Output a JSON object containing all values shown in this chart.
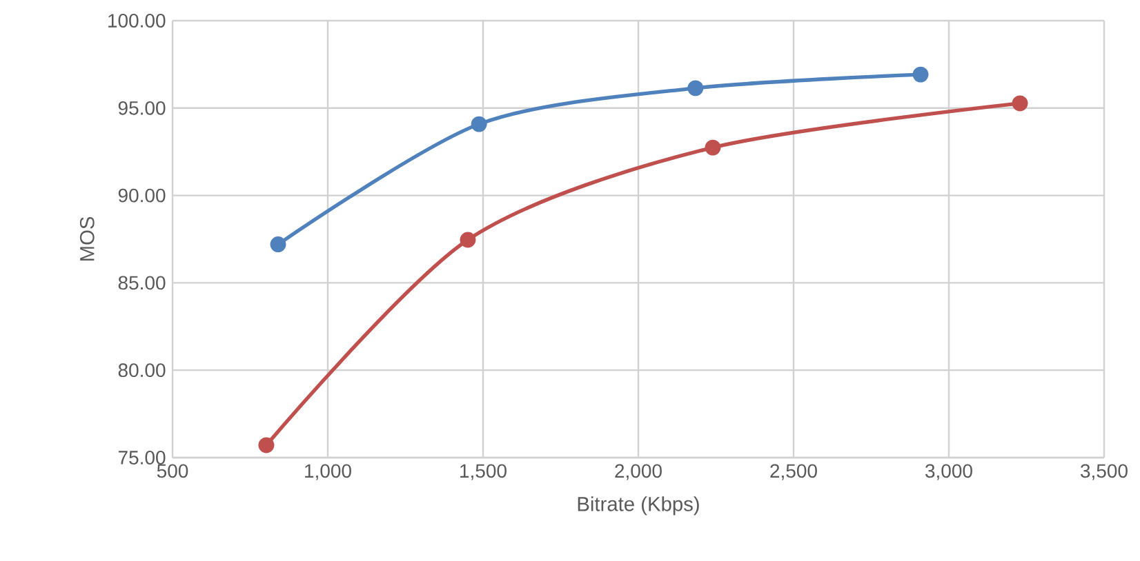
{
  "chart_data": {
    "type": "line",
    "xlabel": "Bitrate (Kbps)",
    "ylabel": "MOS",
    "series": [
      {
        "color": "#4f81bd",
        "x": [
          840,
          1487,
          2184,
          2909
        ],
        "values": [
          87.2,
          94.08,
          96.14,
          96.92
        ]
      },
      {
        "color": "#c0504d",
        "x": [
          802,
          1451,
          2240,
          3229
        ],
        "values": [
          75.71,
          87.46,
          92.74,
          95.27
        ]
      }
    ],
    "xlim": [
      500,
      3500
    ],
    "ylim": [
      75,
      100
    ],
    "xticks": [
      500,
      {
        "value": 1000,
        "label": "1,000"
      },
      {
        "value": 1500,
        "label": "1,500"
      },
      {
        "value": 2000,
        "label": "2,000"
      },
      {
        "value": 2500,
        "label": "2,500"
      },
      {
        "value": 3000,
        "label": "3,000"
      },
      {
        "value": 3500,
        "label": "3,500"
      }
    ],
    "yticks": [
      {
        "value": 75,
        "label": "75.00"
      },
      {
        "value": 80,
        "label": "80.00"
      },
      {
        "value": 85,
        "label": "85.00"
      },
      {
        "value": 90,
        "label": "90.00"
      },
      {
        "value": 95,
        "label": "95.00"
      },
      {
        "value": 100,
        "label": "100.00"
      }
    ],
    "grid": true,
    "marker": "circle",
    "line_style": "solid"
  }
}
